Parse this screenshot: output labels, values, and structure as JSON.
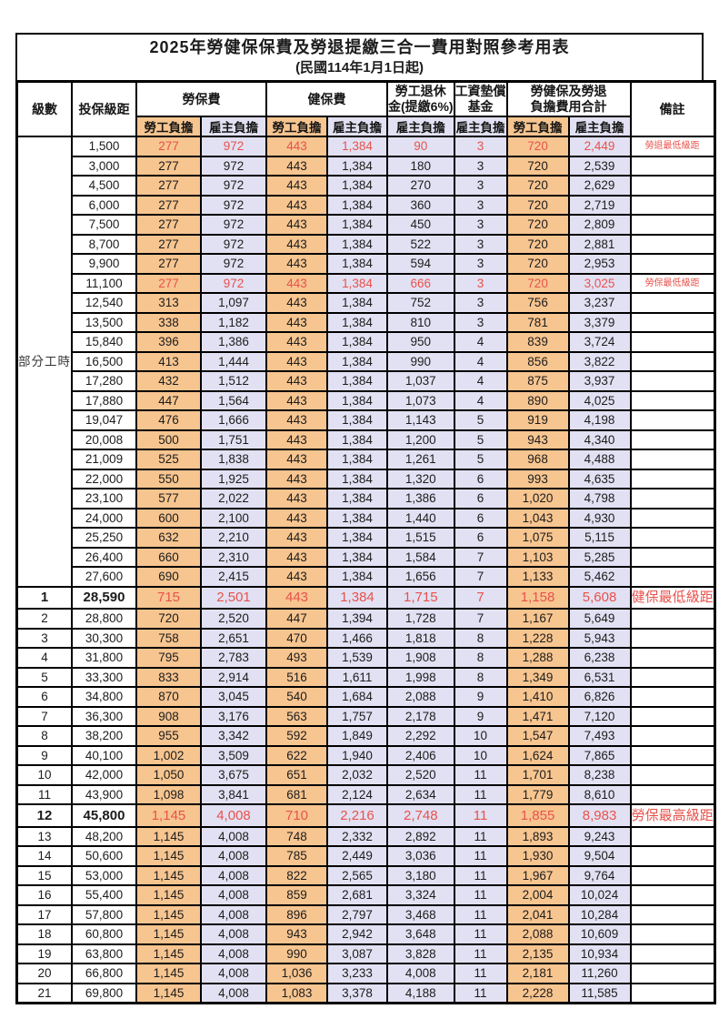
{
  "title": {
    "line1": "2025年勞健保保費及勞退提繳三合一費用對照參考用表",
    "line2": "(民國114年1月1日起)"
  },
  "header": {
    "level": "級數",
    "salary": "投保級距",
    "labor_insurance": "勞保費",
    "health_insurance": "健保費",
    "pension_line1": "勞工退休",
    "pension_line2": "金(提繳6%)",
    "wage_fund_line1": "工資墊償",
    "wage_fund_line2": "基金",
    "total_line1": "勞健保及勞退",
    "total_line2": "負擔費用合計",
    "remark": "備註",
    "employee_burden": "勞工負擔",
    "employer_burden": "雇主負擔"
  },
  "part_time_label": "部分工時",
  "colors": {
    "employee_bg": "#F7C590",
    "employer_bg": "#E2E1F3",
    "highlight_text": "#E8524C"
  },
  "rows": [
    {
      "level": "",
      "salary": "1,500",
      "values": [
        "277",
        "972",
        "443",
        "1,384",
        "90",
        "3",
        "720",
        "2,449"
      ],
      "remark": "勞退最低級距",
      "highlight": true,
      "emphasis": false
    },
    {
      "level": "",
      "salary": "3,000",
      "values": [
        "277",
        "972",
        "443",
        "1,384",
        "180",
        "3",
        "720",
        "2,539"
      ],
      "remark": "",
      "highlight": false,
      "emphasis": false
    },
    {
      "level": "",
      "salary": "4,500",
      "values": [
        "277",
        "972",
        "443",
        "1,384",
        "270",
        "3",
        "720",
        "2,629"
      ],
      "remark": "",
      "highlight": false,
      "emphasis": false
    },
    {
      "level": "",
      "salary": "6,000",
      "values": [
        "277",
        "972",
        "443",
        "1,384",
        "360",
        "3",
        "720",
        "2,719"
      ],
      "remark": "",
      "highlight": false,
      "emphasis": false
    },
    {
      "level": "",
      "salary": "7,500",
      "values": [
        "277",
        "972",
        "443",
        "1,384",
        "450",
        "3",
        "720",
        "2,809"
      ],
      "remark": "",
      "highlight": false,
      "emphasis": false
    },
    {
      "level": "",
      "salary": "8,700",
      "values": [
        "277",
        "972",
        "443",
        "1,384",
        "522",
        "3",
        "720",
        "2,881"
      ],
      "remark": "",
      "highlight": false,
      "emphasis": false
    },
    {
      "level": "",
      "salary": "9,900",
      "values": [
        "277",
        "972",
        "443",
        "1,384",
        "594",
        "3",
        "720",
        "2,953"
      ],
      "remark": "",
      "highlight": false,
      "emphasis": false
    },
    {
      "level": "",
      "salary": "11,100",
      "values": [
        "277",
        "972",
        "443",
        "1,384",
        "666",
        "3",
        "720",
        "3,025"
      ],
      "remark": "勞保最低級距",
      "highlight": true,
      "emphasis": false
    },
    {
      "level": "",
      "salary": "12,540",
      "values": [
        "313",
        "1,097",
        "443",
        "1,384",
        "752",
        "3",
        "756",
        "3,237"
      ],
      "remark": "",
      "highlight": false,
      "emphasis": false
    },
    {
      "level": "",
      "salary": "13,500",
      "values": [
        "338",
        "1,182",
        "443",
        "1,384",
        "810",
        "3",
        "781",
        "3,379"
      ],
      "remark": "",
      "highlight": false,
      "emphasis": false
    },
    {
      "level": "",
      "salary": "15,840",
      "values": [
        "396",
        "1,386",
        "443",
        "1,384",
        "950",
        "4",
        "839",
        "3,724"
      ],
      "remark": "",
      "highlight": false,
      "emphasis": false
    },
    {
      "level": "",
      "salary": "16,500",
      "values": [
        "413",
        "1,444",
        "443",
        "1,384",
        "990",
        "4",
        "856",
        "3,822"
      ],
      "remark": "",
      "highlight": false,
      "emphasis": false
    },
    {
      "level": "",
      "salary": "17,280",
      "values": [
        "432",
        "1,512",
        "443",
        "1,384",
        "1,037",
        "4",
        "875",
        "3,937"
      ],
      "remark": "",
      "highlight": false,
      "emphasis": false
    },
    {
      "level": "",
      "salary": "17,880",
      "values": [
        "447",
        "1,564",
        "443",
        "1,384",
        "1,073",
        "4",
        "890",
        "4,025"
      ],
      "remark": "",
      "highlight": false,
      "emphasis": false
    },
    {
      "level": "",
      "salary": "19,047",
      "values": [
        "476",
        "1,666",
        "443",
        "1,384",
        "1,143",
        "5",
        "919",
        "4,198"
      ],
      "remark": "",
      "highlight": false,
      "emphasis": false
    },
    {
      "level": "",
      "salary": "20,008",
      "values": [
        "500",
        "1,751",
        "443",
        "1,384",
        "1,200",
        "5",
        "943",
        "4,340"
      ],
      "remark": "",
      "highlight": false,
      "emphasis": false
    },
    {
      "level": "",
      "salary": "21,009",
      "values": [
        "525",
        "1,838",
        "443",
        "1,384",
        "1,261",
        "5",
        "968",
        "4,488"
      ],
      "remark": "",
      "highlight": false,
      "emphasis": false
    },
    {
      "level": "",
      "salary": "22,000",
      "values": [
        "550",
        "1,925",
        "443",
        "1,384",
        "1,320",
        "6",
        "993",
        "4,635"
      ],
      "remark": "",
      "highlight": false,
      "emphasis": false
    },
    {
      "level": "",
      "salary": "23,100",
      "values": [
        "577",
        "2,022",
        "443",
        "1,384",
        "1,386",
        "6",
        "1,020",
        "4,798"
      ],
      "remark": "",
      "highlight": false,
      "emphasis": false
    },
    {
      "level": "",
      "salary": "24,000",
      "values": [
        "600",
        "2,100",
        "443",
        "1,384",
        "1,440",
        "6",
        "1,043",
        "4,930"
      ],
      "remark": "",
      "highlight": false,
      "emphasis": false
    },
    {
      "level": "",
      "salary": "25,250",
      "values": [
        "632",
        "2,210",
        "443",
        "1,384",
        "1,515",
        "6",
        "1,075",
        "5,115"
      ],
      "remark": "",
      "highlight": false,
      "emphasis": false
    },
    {
      "level": "",
      "salary": "26,400",
      "values": [
        "660",
        "2,310",
        "443",
        "1,384",
        "1,584",
        "7",
        "1,103",
        "5,285"
      ],
      "remark": "",
      "highlight": false,
      "emphasis": false
    },
    {
      "level": "",
      "salary": "27,600",
      "values": [
        "690",
        "2,415",
        "443",
        "1,384",
        "1,656",
        "7",
        "1,133",
        "5,462"
      ],
      "remark": "",
      "highlight": false,
      "emphasis": false
    },
    {
      "level": "1",
      "salary": "28,590",
      "values": [
        "715",
        "2,501",
        "443",
        "1,384",
        "1,715",
        "7",
        "1,158",
        "5,608"
      ],
      "remark": "健保最低級距",
      "highlight": true,
      "emphasis": true
    },
    {
      "level": "2",
      "salary": "28,800",
      "values": [
        "720",
        "2,520",
        "447",
        "1,394",
        "1,728",
        "7",
        "1,167",
        "5,649"
      ],
      "remark": "",
      "highlight": false,
      "emphasis": false
    },
    {
      "level": "3",
      "salary": "30,300",
      "values": [
        "758",
        "2,651",
        "470",
        "1,466",
        "1,818",
        "8",
        "1,228",
        "5,943"
      ],
      "remark": "",
      "highlight": false,
      "emphasis": false
    },
    {
      "level": "4",
      "salary": "31,800",
      "values": [
        "795",
        "2,783",
        "493",
        "1,539",
        "1,908",
        "8",
        "1,288",
        "6,238"
      ],
      "remark": "",
      "highlight": false,
      "emphasis": false
    },
    {
      "level": "5",
      "salary": "33,300",
      "values": [
        "833",
        "2,914",
        "516",
        "1,611",
        "1,998",
        "8",
        "1,349",
        "6,531"
      ],
      "remark": "",
      "highlight": false,
      "emphasis": false
    },
    {
      "level": "6",
      "salary": "34,800",
      "values": [
        "870",
        "3,045",
        "540",
        "1,684",
        "2,088",
        "9",
        "1,410",
        "6,826"
      ],
      "remark": "",
      "highlight": false,
      "emphasis": false
    },
    {
      "level": "7",
      "salary": "36,300",
      "values": [
        "908",
        "3,176",
        "563",
        "1,757",
        "2,178",
        "9",
        "1,471",
        "7,120"
      ],
      "remark": "",
      "highlight": false,
      "emphasis": false
    },
    {
      "level": "8",
      "salary": "38,200",
      "values": [
        "955",
        "3,342",
        "592",
        "1,849",
        "2,292",
        "10",
        "1,547",
        "7,493"
      ],
      "remark": "",
      "highlight": false,
      "emphasis": false
    },
    {
      "level": "9",
      "salary": "40,100",
      "values": [
        "1,002",
        "3,509",
        "622",
        "1,940",
        "2,406",
        "10",
        "1,624",
        "7,865"
      ],
      "remark": "",
      "highlight": false,
      "emphasis": false
    },
    {
      "level": "10",
      "salary": "42,000",
      "values": [
        "1,050",
        "3,675",
        "651",
        "2,032",
        "2,520",
        "11",
        "1,701",
        "8,238"
      ],
      "remark": "",
      "highlight": false,
      "emphasis": false
    },
    {
      "level": "11",
      "salary": "43,900",
      "values": [
        "1,098",
        "3,841",
        "681",
        "2,124",
        "2,634",
        "11",
        "1,779",
        "8,610"
      ],
      "remark": "",
      "highlight": false,
      "emphasis": false
    },
    {
      "level": "12",
      "salary": "45,800",
      "values": [
        "1,145",
        "4,008",
        "710",
        "2,216",
        "2,748",
        "11",
        "1,855",
        "8,983"
      ],
      "remark": "勞保最高級距",
      "highlight": true,
      "emphasis": true
    },
    {
      "level": "13",
      "salary": "48,200",
      "values": [
        "1,145",
        "4,008",
        "748",
        "2,332",
        "2,892",
        "11",
        "1,893",
        "9,243"
      ],
      "remark": "",
      "highlight": false,
      "emphasis": false
    },
    {
      "level": "14",
      "salary": "50,600",
      "values": [
        "1,145",
        "4,008",
        "785",
        "2,449",
        "3,036",
        "11",
        "1,930",
        "9,504"
      ],
      "remark": "",
      "highlight": false,
      "emphasis": false
    },
    {
      "level": "15",
      "salary": "53,000",
      "values": [
        "1,145",
        "4,008",
        "822",
        "2,565",
        "3,180",
        "11",
        "1,967",
        "9,764"
      ],
      "remark": "",
      "highlight": false,
      "emphasis": false
    },
    {
      "level": "16",
      "salary": "55,400",
      "values": [
        "1,145",
        "4,008",
        "859",
        "2,681",
        "3,324",
        "11",
        "2,004",
        "10,024"
      ],
      "remark": "",
      "highlight": false,
      "emphasis": false
    },
    {
      "level": "17",
      "salary": "57,800",
      "values": [
        "1,145",
        "4,008",
        "896",
        "2,797",
        "3,468",
        "11",
        "2,041",
        "10,284"
      ],
      "remark": "",
      "highlight": false,
      "emphasis": false
    },
    {
      "level": "18",
      "salary": "60,800",
      "values": [
        "1,145",
        "4,008",
        "943",
        "2,942",
        "3,648",
        "11",
        "2,088",
        "10,609"
      ],
      "remark": "",
      "highlight": false,
      "emphasis": false
    },
    {
      "level": "19",
      "salary": "63,800",
      "values": [
        "1,145",
        "4,008",
        "990",
        "3,087",
        "3,828",
        "11",
        "2,135",
        "10,934"
      ],
      "remark": "",
      "highlight": false,
      "emphasis": false
    },
    {
      "level": "20",
      "salary": "66,800",
      "values": [
        "1,145",
        "4,008",
        "1,036",
        "3,233",
        "4,008",
        "11",
        "2,181",
        "11,260"
      ],
      "remark": "",
      "highlight": false,
      "emphasis": false
    },
    {
      "level": "21",
      "salary": "69,800",
      "values": [
        "1,145",
        "4,008",
        "1,083",
        "3,378",
        "4,188",
        "11",
        "2,228",
        "11,585"
      ],
      "remark": "",
      "highlight": false,
      "emphasis": false
    }
  ]
}
